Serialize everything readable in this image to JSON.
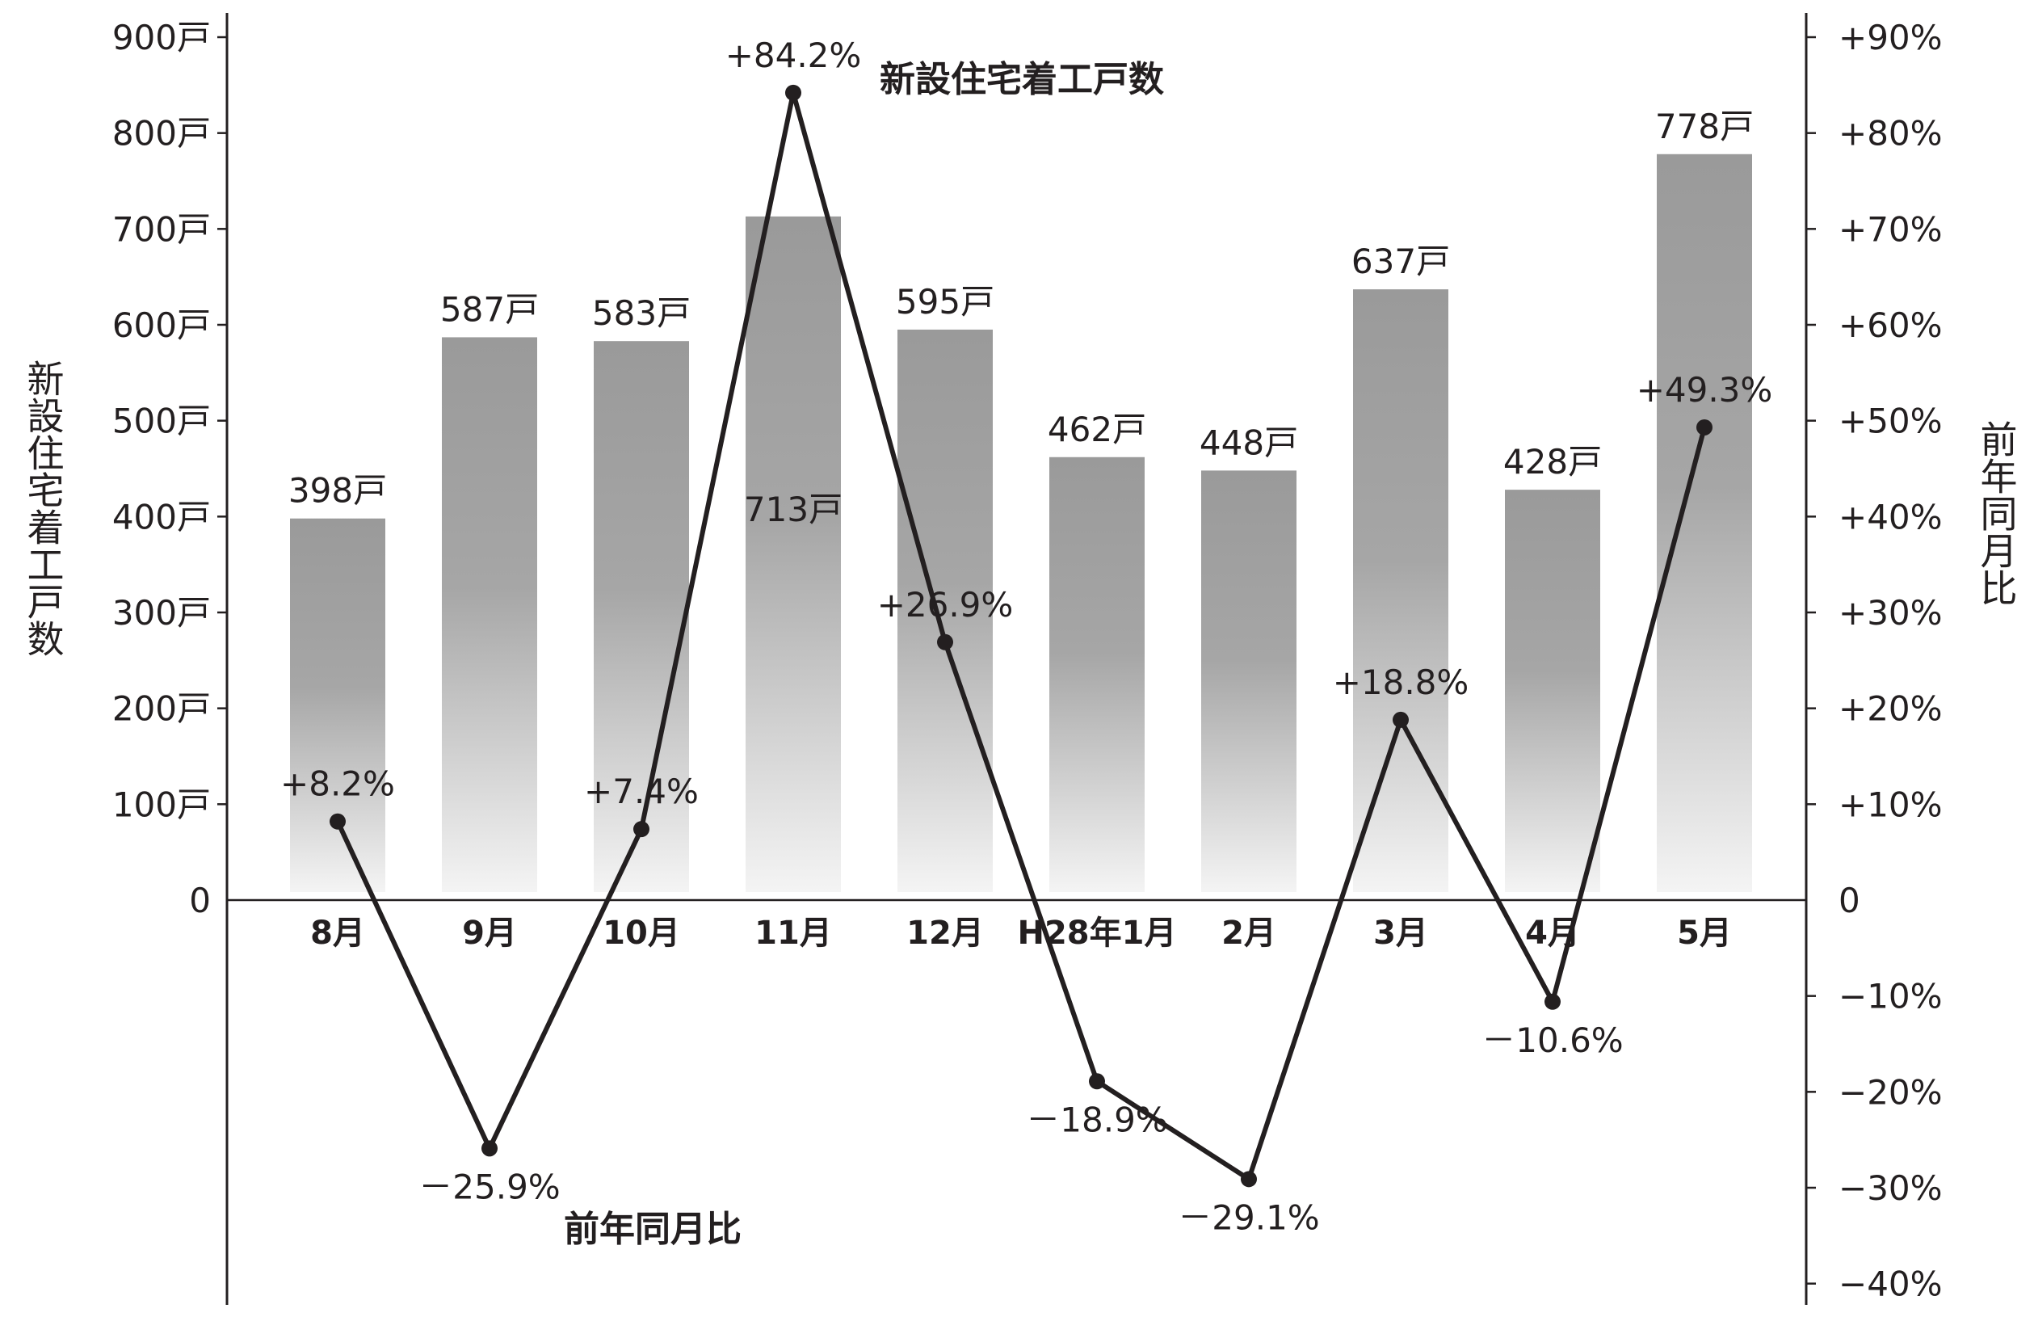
{
  "chart_data": {
    "type": "bar+line",
    "categories": [
      "8月",
      "9月",
      "10月",
      "11月",
      "12月",
      "H28年1月",
      "2月",
      "3月",
      "4月",
      "5月"
    ],
    "bar_series": {
      "name": "新設住宅着工戸数",
      "values": [
        398,
        587,
        583,
        713,
        595,
        462,
        448,
        637,
        428,
        778
      ],
      "labels": [
        "398戸",
        "587戸",
        "583戸",
        "713戸",
        "595戸",
        "462戸",
        "448戸",
        "637戸",
        "428戸",
        "778戸"
      ]
    },
    "line_series": {
      "name": "前年同月比",
      "values": [
        8.2,
        -25.9,
        7.4,
        84.2,
        26.9,
        -18.9,
        -29.1,
        18.8,
        -10.6,
        49.3
      ],
      "labels": [
        "+8.2%",
        "－25.9%",
        "+7.4%",
        "+84.2%",
        "+26.9%",
        "－18.9%",
        "－29.1%",
        "+18.8%",
        "－10.6%",
        "+49.3%"
      ]
    },
    "left_axis": {
      "title": "新設住宅着工戸数",
      "ylim": [
        0,
        900
      ],
      "ticks": [
        0,
        100,
        200,
        300,
        400,
        500,
        600,
        700,
        800,
        900
      ],
      "tick_labels": [
        "0",
        "100戸",
        "200戸",
        "300戸",
        "400戸",
        "500戸",
        "600戸",
        "700戸",
        "800戸",
        "900戸"
      ]
    },
    "right_axis": {
      "title": "前年同月比",
      "ylim": [
        -40,
        90
      ],
      "ticks": [
        90,
        80,
        70,
        60,
        50,
        40,
        30,
        20,
        10,
        0,
        -10,
        -20,
        -30,
        -40
      ],
      "tick_labels": [
        "+90%",
        "+80%",
        "+70%",
        "+60%",
        "+50%",
        "+40%",
        "+30%",
        "+20%",
        "+10%",
        "0",
        "−10%",
        "−20%",
        "−30%",
        "−40%"
      ]
    },
    "grid": false,
    "legend": "inline labels",
    "colors": {
      "bar_top": "#9a9a9a",
      "bar_bottom": "#f4f4f4",
      "line": "#231f20",
      "text": "#231f20"
    }
  }
}
